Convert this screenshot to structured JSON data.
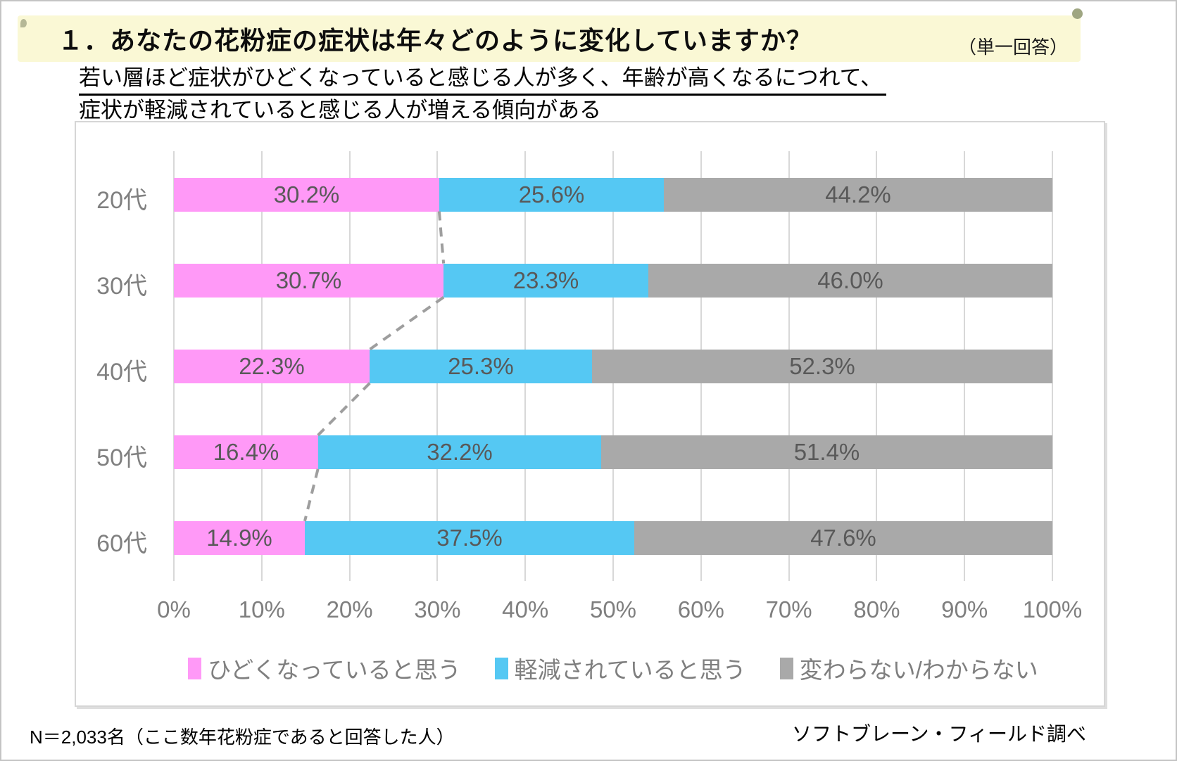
{
  "header": {
    "title": "１．あなたの花粉症の症状は年々どのように変化していますか？",
    "answer_type": "（単一回答）",
    "band_color": "#FAF8D5",
    "summary_line1": "若い層ほど症状がひどくなっていると感じる人が多く、年齢が高くなるにつれて、",
    "summary_line2": "症状が軽減されていると感じる人が増える傾向がある"
  },
  "chart_data": {
    "type": "bar",
    "orientation": "horizontal-stacked",
    "title": "",
    "xlabel": "",
    "ylabel": "",
    "xlim": [
      0,
      100
    ],
    "grid": true,
    "legend_position": "bottom",
    "categories": [
      "20代",
      "30代",
      "40代",
      "50代",
      "60代"
    ],
    "series": [
      {
        "name": "ひどくなっていると思う",
        "color": "#FF99F7",
        "values": [
          30.2,
          30.7,
          22.3,
          16.4,
          14.9
        ]
      },
      {
        "name": "軽減されていると思う",
        "color": "#55C8F3",
        "values": [
          25.6,
          23.3,
          25.3,
          32.2,
          37.5
        ]
      },
      {
        "name": "変わらない/わからない",
        "color": "#A9A9A9",
        "values": [
          44.2,
          46.0,
          52.3,
          51.4,
          47.6
        ]
      }
    ],
    "x_ticks": [
      "0%",
      "10%",
      "20%",
      "30%",
      "40%",
      "50%",
      "60%",
      "70%",
      "80%",
      "90%",
      "100%"
    ],
    "annotations": "dashed gray lines connect the right edge of the first (pink) segment of each bar to the next bar",
    "connector_color": "#9E9E9E",
    "grid_color": "#D8D8D8",
    "value_label_format": "0.0%"
  },
  "footer": {
    "sample_note": "N＝2,033名（ここ数年花粉症であると回答した人）",
    "source": "ソフトブレーン・フィールド調べ"
  }
}
